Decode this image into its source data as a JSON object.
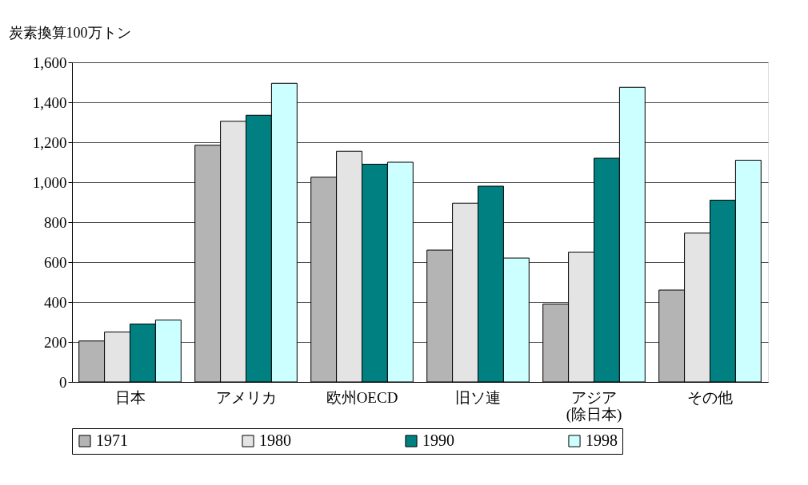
{
  "chart_data": {
    "type": "bar",
    "ylabel": "炭素換算100万トン",
    "categories": [
      "日本",
      "アメリカ",
      "欧州OECD",
      "旧ソ連",
      "アジア\n(除日本)",
      "その他"
    ],
    "series": [
      {
        "name": "1971",
        "color": "#b4b4b4",
        "values": [
          205,
          1185,
          1025,
          660,
          390,
          460
        ]
      },
      {
        "name": "1980",
        "color": "#e4e4e4",
        "values": [
          250,
          1305,
          1155,
          895,
          650,
          745
        ]
      },
      {
        "name": "1990",
        "color": "#008080",
        "values": [
          290,
          1335,
          1090,
          980,
          1120,
          910
        ]
      },
      {
        "name": "1998",
        "color": "#ccffff",
        "values": [
          310,
          1495,
          1100,
          620,
          1475,
          1110
        ]
      }
    ],
    "ylim": [
      0,
      1600
    ],
    "yticks": [
      0,
      200,
      400,
      600,
      800,
      {
        "value": 1000,
        "label": "1,000"
      },
      {
        "value": 1200,
        "label": "1,200"
      },
      {
        "value": 1400,
        "label": "1,400"
      },
      {
        "value": 1600,
        "label": "1,600"
      }
    ],
    "grid": "y",
    "legend": "bottom"
  }
}
